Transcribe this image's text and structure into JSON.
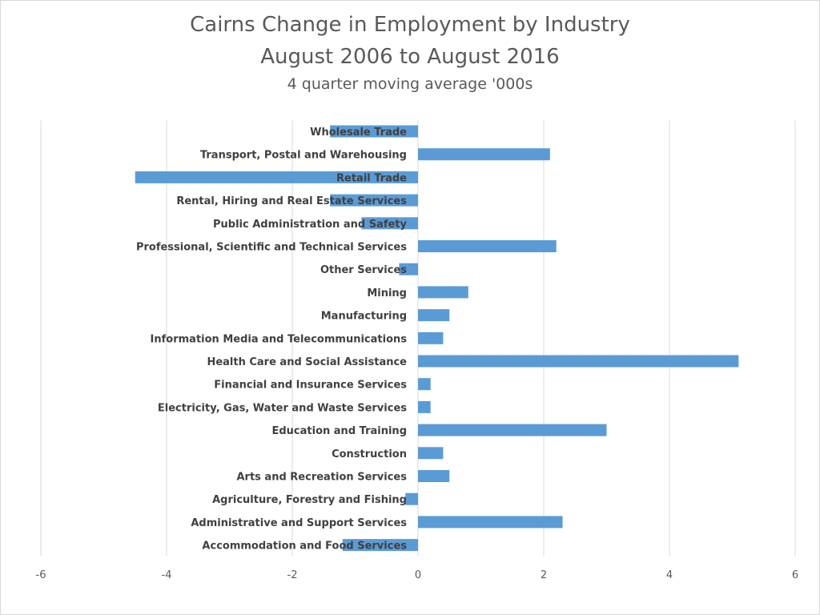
{
  "chart_data": {
    "type": "bar",
    "orientation": "horizontal",
    "title": "Cairns Change in Employment by Industry",
    "title_line2": "August 2006 to August 2016",
    "subtitle": "4 quarter moving average '000s",
    "categories": [
      "Wholesale Trade",
      "Transport, Postal and Warehousing",
      "Retail Trade",
      "Rental, Hiring and Real Estate Services",
      "Public Administration and Safety",
      "Professional, Scientific and Technical Services",
      "Other Services",
      "Mining",
      "Manufacturing",
      "Information Media and Telecommunications",
      "Health Care and Social Assistance",
      "Financial and Insurance Services",
      "Electricity, Gas, Water and Waste Services",
      "Education and Training",
      "Construction",
      "Arts and Recreation Services",
      "Agriculture, Forestry and Fishing",
      "Administrative and Support Services",
      "Accommodation and Food Services"
    ],
    "values": [
      -1.4,
      2.1,
      -4.5,
      -1.4,
      -0.9,
      2.2,
      -0.3,
      0.8,
      0.5,
      0.4,
      5.1,
      0.2,
      0.2,
      3.0,
      0.4,
      0.5,
      -0.2,
      2.3,
      -1.2
    ],
    "xlim": [
      -6,
      6
    ],
    "xticks": [
      "-6",
      "-4",
      "-2",
      "0",
      "2",
      "4",
      "6"
    ],
    "grid": true,
    "legend": "none",
    "bar_color": "#5b9bd5"
  }
}
